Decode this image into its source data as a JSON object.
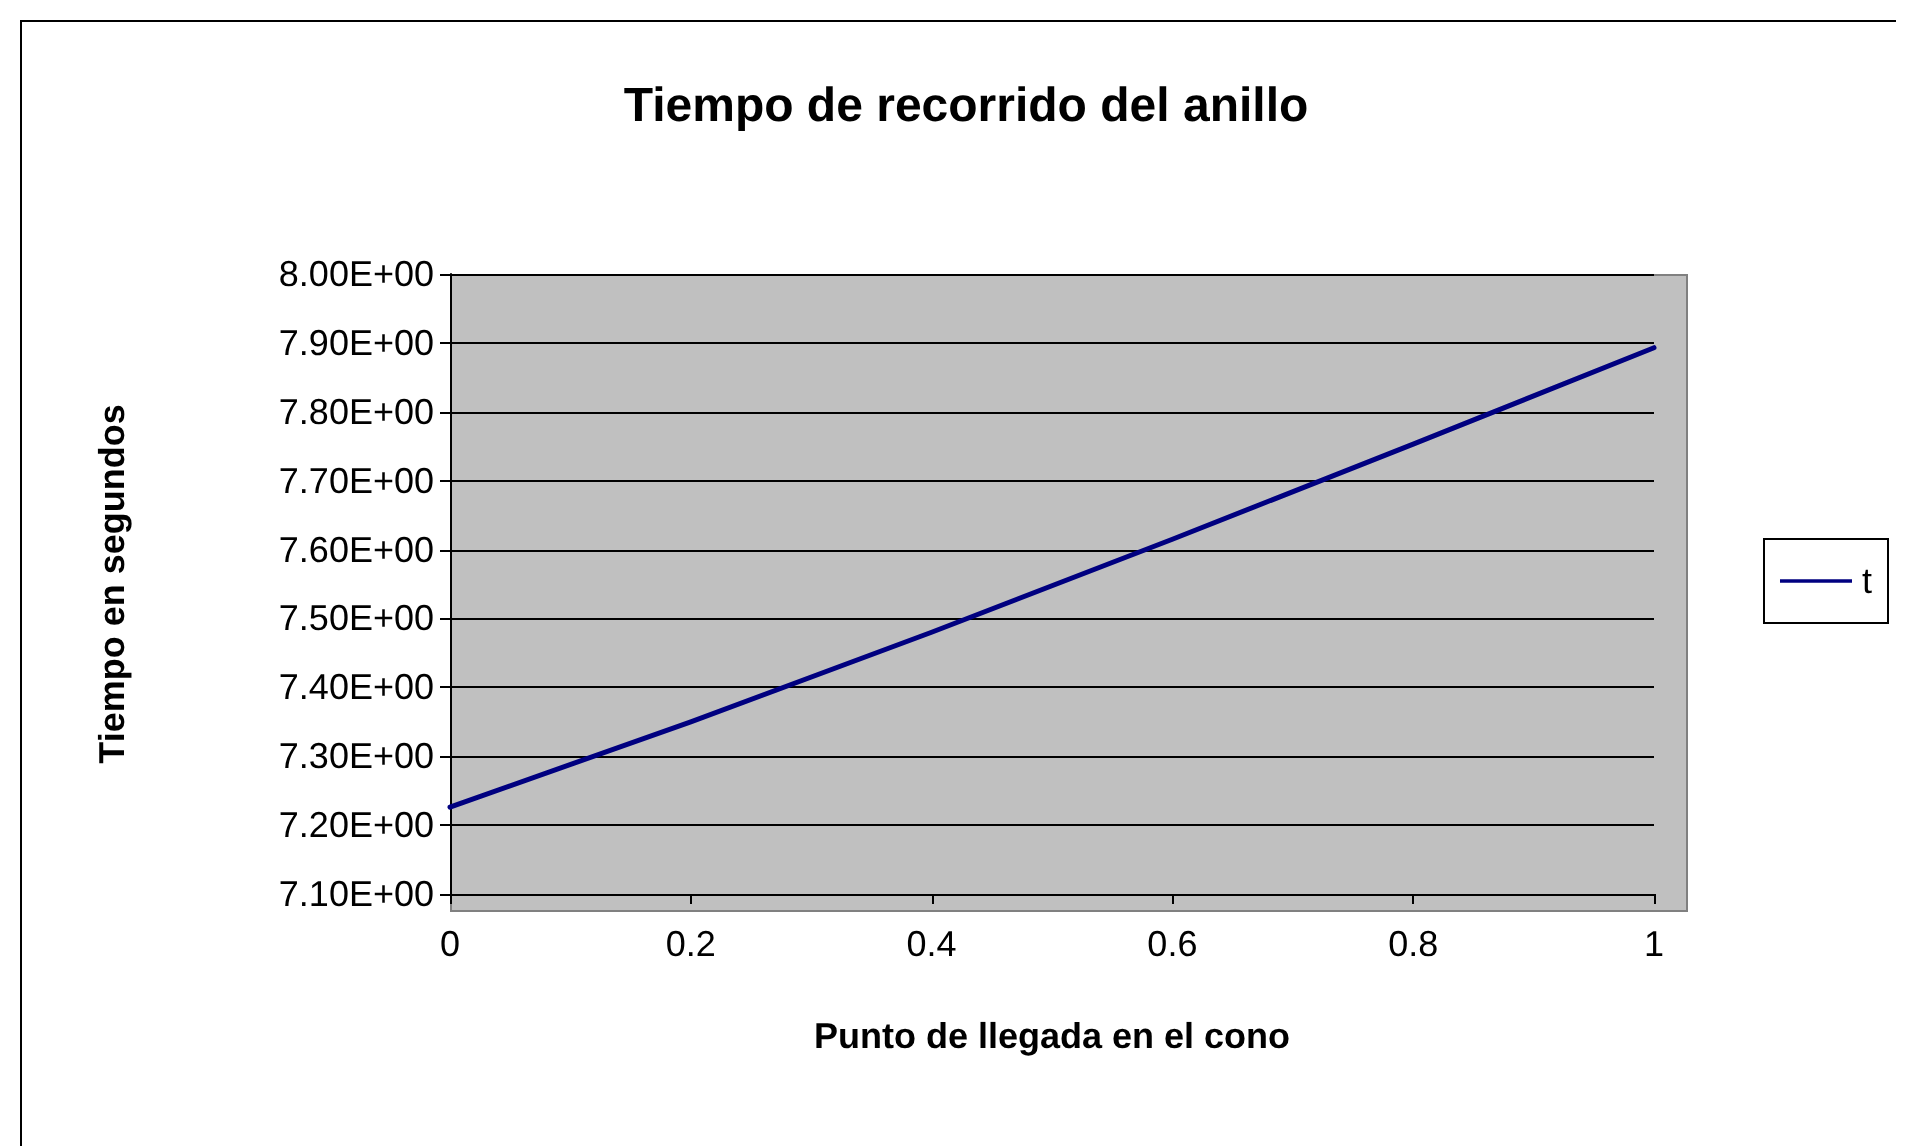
{
  "chart_data": {
    "type": "line",
    "title": "Tiempo de recorrido del anillo",
    "xlabel": "Punto de llegada en el cono",
    "ylabel": "Tiempo en segundos",
    "x": [
      0,
      0.2,
      0.4,
      0.6,
      0.8,
      1
    ],
    "series": [
      {
        "name": "t",
        "color": "#000080",
        "values": [
          7.226,
          7.35,
          7.48,
          7.615,
          7.753,
          7.893
        ]
      }
    ],
    "xlim": [
      0,
      1
    ],
    "xticks": [
      0,
      0.2,
      0.4,
      0.6,
      0.8,
      1
    ],
    "ylim": [
      7.1,
      8.0
    ],
    "yticks": [
      {
        "value": 7.1,
        "label": "7.10E+00"
      },
      {
        "value": 7.2,
        "label": "7.20E+00"
      },
      {
        "value": 7.3,
        "label": "7.30E+00"
      },
      {
        "value": 7.4,
        "label": "7.40E+00"
      },
      {
        "value": 7.5,
        "label": "7.50E+00"
      },
      {
        "value": 7.6,
        "label": "7.60E+00"
      },
      {
        "value": 7.7,
        "label": "7.70E+00"
      },
      {
        "value": 7.8,
        "label": "7.80E+00"
      },
      {
        "value": 7.9,
        "label": "7.90E+00"
      },
      {
        "value": 8.0,
        "label": "8.00E+00"
      }
    ],
    "grid": "y",
    "legend": "right",
    "marker": "none",
    "line_style": "solid"
  }
}
